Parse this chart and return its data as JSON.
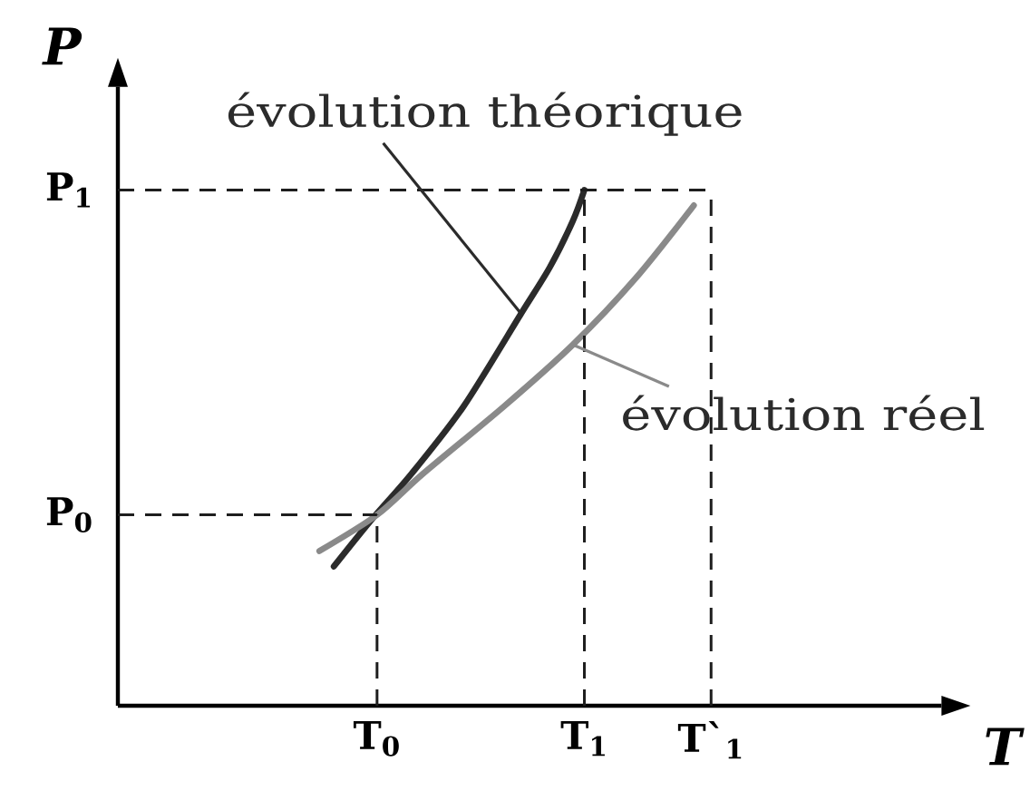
{
  "chart_data": {
    "type": "line",
    "xlabel": "T",
    "ylabel": "P",
    "xlim": [
      0,
      1.43
    ],
    "ylim": [
      0,
      1.2
    ],
    "xticks": [
      {
        "value": 0.45,
        "label": "T$_{0}$"
      },
      {
        "value": 0.81,
        "label": "T$_{1}$"
      },
      {
        "value": 1.03,
        "label": "T`$_{1}$"
      }
    ],
    "yticks": [
      {
        "value": 0.37,
        "label": "P$_{0}$"
      },
      {
        "value": 1.0,
        "label": "P$_{1}$"
      }
    ],
    "series": [
      {
        "name": "évolution théorique",
        "color": "#2b2b2b",
        "x": [
          0.375,
          0.44,
          0.51,
          0.6,
          0.7,
          0.75,
          0.79,
          0.81
        ],
        "values": [
          0.27,
          0.36,
          0.45,
          0.58,
          0.76,
          0.85,
          0.94,
          1.0
        ]
      },
      {
        "name": "évolution réel",
        "color": "#8a8a8a",
        "x": [
          0.35,
          0.45,
          0.53,
          0.67,
          0.79,
          0.9,
          1.0
        ],
        "values": [
          0.3,
          0.37,
          0.45,
          0.58,
          0.7,
          0.83,
          0.97
        ]
      }
    ],
    "ref_lines": [
      {
        "axis": "y",
        "value": 1.0,
        "line_style": "dashed"
      },
      {
        "axis": "y",
        "value": 0.37,
        "line_style": "dashed"
      },
      {
        "axis": "x",
        "value": 0.45,
        "line_style": "dashed"
      },
      {
        "axis": "x",
        "value": 0.81,
        "line_style": "dashed"
      },
      {
        "axis": "x",
        "value": 1.03,
        "line_style": "dashed"
      }
    ]
  }
}
